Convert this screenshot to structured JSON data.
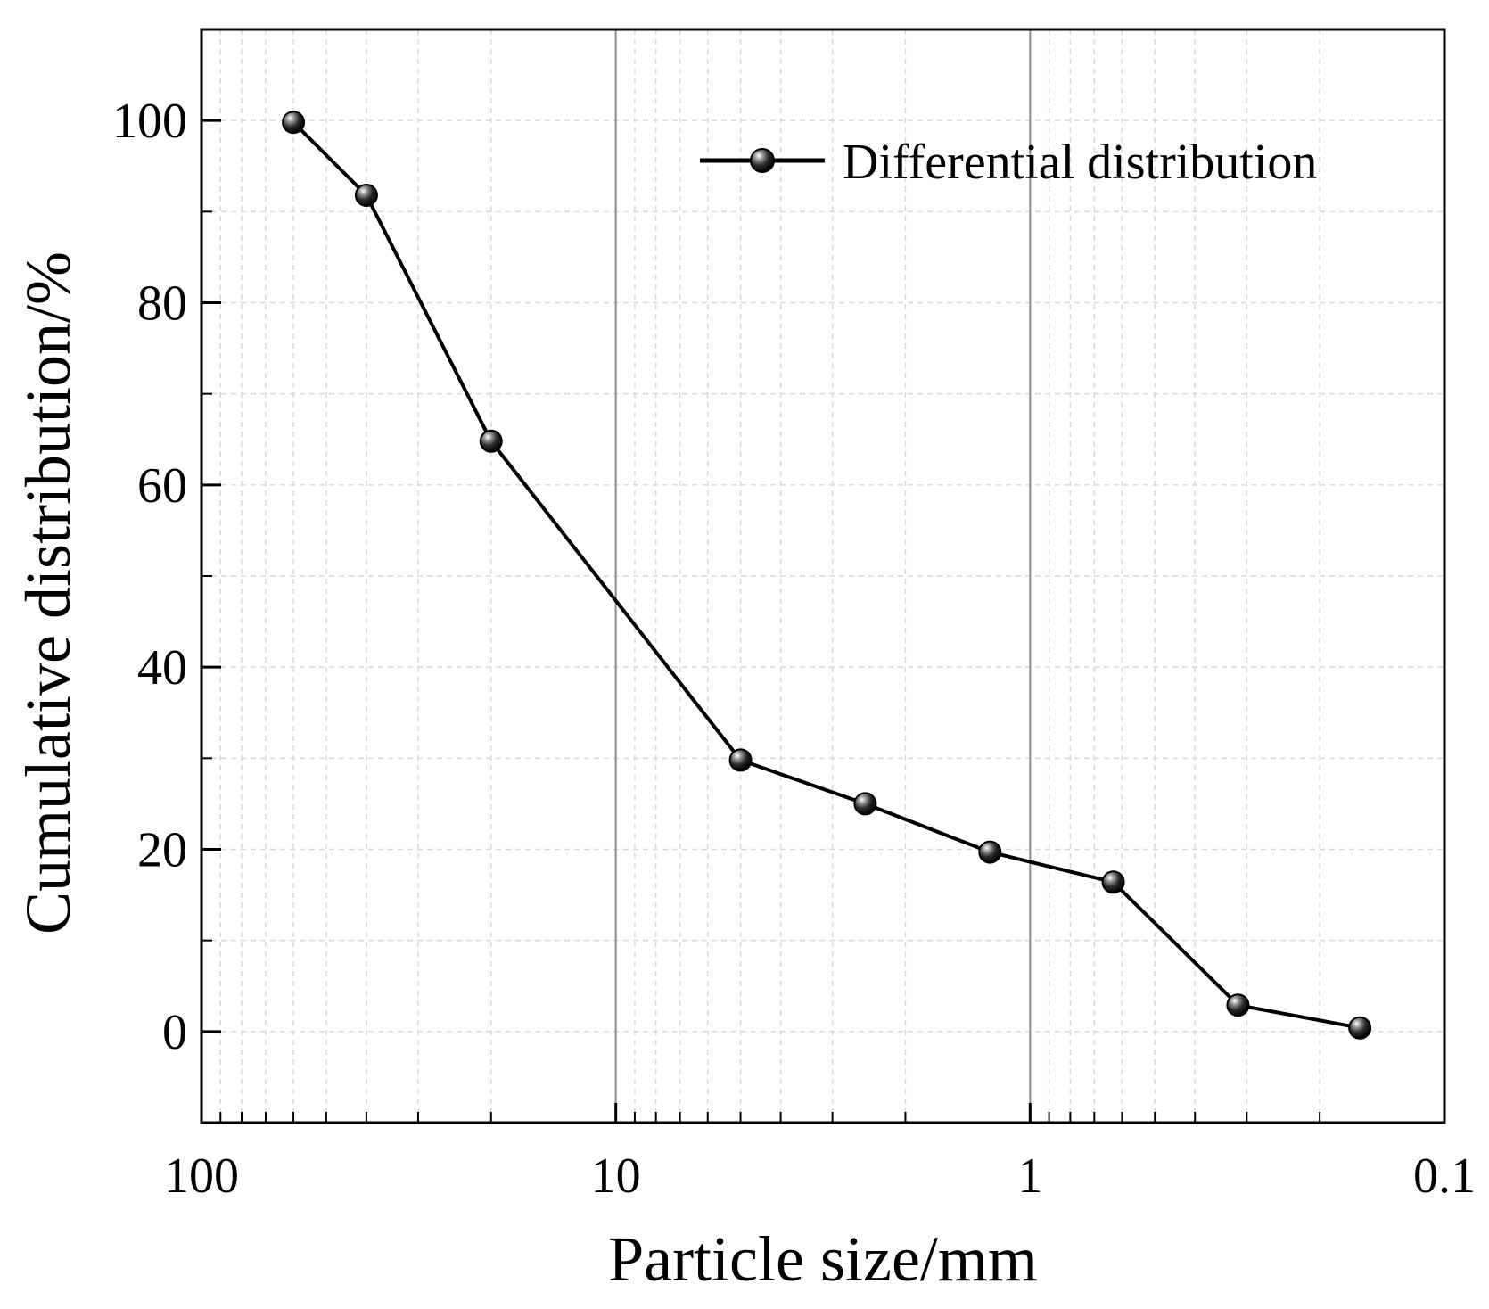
{
  "chart_data": {
    "type": "line",
    "title": "",
    "xlabel": "Particle size/mm",
    "ylabel": "Cumulative distribution/%",
    "x_scale": "log",
    "x_reversed": true,
    "xlim": [
      100,
      0.1
    ],
    "ylim": [
      -10,
      110
    ],
    "x_ticks": [
      100,
      10,
      1,
      0.1
    ],
    "x_tick_labels": [
      "100",
      "10",
      "1",
      "0.1"
    ],
    "y_ticks": [
      0,
      20,
      40,
      60,
      80,
      100
    ],
    "y_tick_labels": [
      "0",
      "20",
      "40",
      "60",
      "80",
      "100"
    ],
    "grid": true,
    "legend_position": "top-right",
    "series": [
      {
        "name": "Differential distribution",
        "x": [
          60,
          40,
          20,
          5,
          2.5,
          1.25,
          0.63,
          0.315,
          0.16
        ],
        "values": [
          99.8,
          91.8,
          64.8,
          29.8,
          25.0,
          19.7,
          16.4,
          2.9,
          0.4
        ]
      }
    ],
    "colors": {
      "line": "#000000",
      "marker": "#111111",
      "grid": "#d9d9d9",
      "major_grid": "#8c8c8c"
    }
  }
}
